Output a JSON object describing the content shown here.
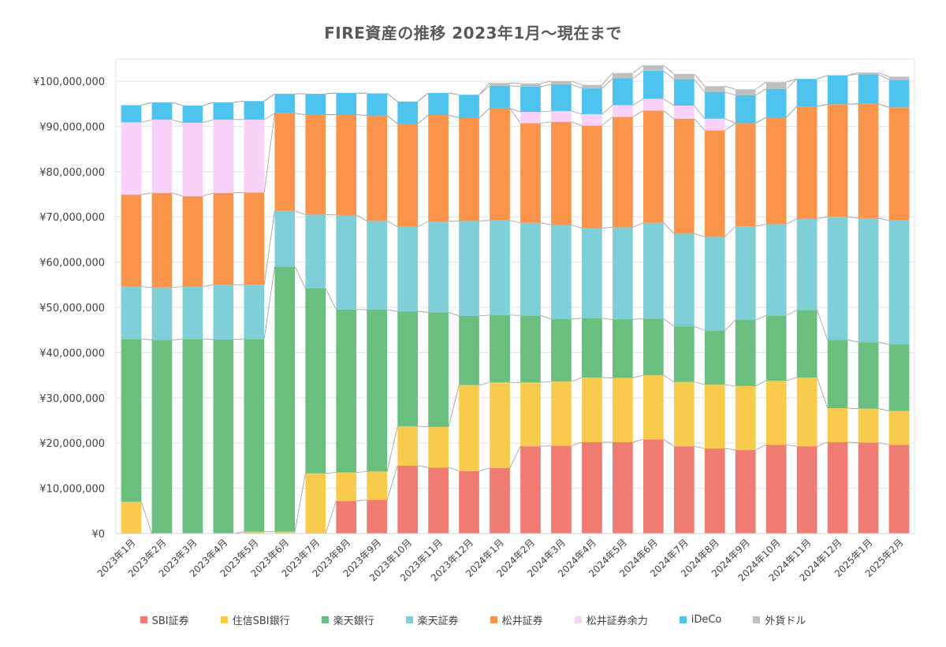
{
  "chart_data": {
    "type": "bar",
    "stacked": true,
    "title": "FIRE資産の推移 2023年1月～現在まで",
    "xlabel": "",
    "ylabel": "",
    "ylim": [
      0,
      100000000
    ],
    "yticks": [
      "¥0",
      "¥10,000,000",
      "¥20,000,000",
      "¥30,000,000",
      "¥40,000,000",
      "¥50,000,000",
      "¥60,000,000",
      "¥70,000,000",
      "¥80,000,000",
      "¥90,000,000",
      "¥100,000,000"
    ],
    "grid": true,
    "legend_position": "bottom",
    "connector_lines": true,
    "categories": [
      "2023年1月",
      "2023年2月",
      "2023年3月",
      "2023年4月",
      "2023年5月",
      "2023年6月",
      "2023年7月",
      "2023年8月",
      "2023年9月",
      "2023年10月",
      "2023年11月",
      "2023年12月",
      "2024年1月",
      "2024年2月",
      "2024年3月",
      "2024年4月",
      "2024年5月",
      "2024年6月",
      "2024年7月",
      "2024年8月",
      "2024年9月",
      "2024年10月",
      "2024年11月",
      "2024年12月",
      "2025年1月",
      "2025年2月"
    ],
    "series": [
      {
        "name": "SBI証券",
        "color": "#F07B72",
        "values": [
          0,
          0,
          0,
          0,
          0,
          0,
          0,
          7200000,
          7400000,
          15000000,
          14600000,
          13800000,
          14500000,
          19300000,
          19400000,
          20200000,
          20200000,
          20800000,
          19300000,
          18800000,
          18500000,
          19600000,
          19300000,
          20200000,
          20100000,
          19600000
        ]
      },
      {
        "name": "住信SBI銀行",
        "color": "#F9CB4D",
        "values": [
          7000000,
          0,
          0,
          0,
          400000,
          400000,
          13300000,
          6300000,
          6300000,
          8700000,
          9000000,
          19000000,
          18900000,
          14100000,
          14200000,
          14300000,
          14200000,
          14200000,
          14200000,
          14100000,
          14100000,
          14200000,
          15200000,
          7500000,
          7500000,
          7500000
        ]
      },
      {
        "name": "楽天銀行",
        "color": "#6BBF7E",
        "values": [
          36000000,
          42800000,
          43000000,
          42900000,
          42600000,
          58600000,
          40900000,
          36000000,
          35800000,
          25400000,
          25300000,
          15300000,
          14900000,
          14800000,
          13800000,
          13100000,
          12900000,
          12500000,
          12300000,
          12000000,
          14600000,
          14400000,
          14900000,
          15100000,
          14700000,
          14700000
        ]
      },
      {
        "name": "楽天証券",
        "color": "#7ECFD7",
        "values": [
          11600000,
          11600000,
          11600000,
          12100000,
          12000000,
          12300000,
          16300000,
          20900000,
          19600000,
          18700000,
          20100000,
          21000000,
          20900000,
          20500000,
          20800000,
          19900000,
          20400000,
          21200000,
          20500000,
          20700000,
          20700000,
          20200000,
          20200000,
          27200000,
          27400000,
          27400000
        ]
      },
      {
        "name": "松井証券",
        "color": "#F9944A",
        "values": [
          20300000,
          20900000,
          20000000,
          20300000,
          20400000,
          21600000,
          22100000,
          22200000,
          23300000,
          22800000,
          23500000,
          22800000,
          24800000,
          22000000,
          22800000,
          22700000,
          24400000,
          24800000,
          25400000,
          23500000,
          22800000,
          23600000,
          24800000,
          24900000,
          25300000,
          25000000
        ]
      },
      {
        "name": "松井証券余力",
        "color": "#F9D1F9",
        "values": [
          16000000,
          16200000,
          16200000,
          16200000,
          16100000,
          0,
          0,
          0,
          0,
          0,
          0,
          0,
          0,
          2500000,
          2400000,
          2500000,
          2600000,
          2600000,
          2900000,
          2600000,
          0,
          0,
          0,
          0,
          0,
          0
        ]
      },
      {
        "name": "iDeCo",
        "color": "#4EC3EE",
        "values": [
          3800000,
          3800000,
          3800000,
          3800000,
          4100000,
          4300000,
          4600000,
          4800000,
          4900000,
          4900000,
          4900000,
          5100000,
          5000000,
          5600000,
          5900000,
          5700000,
          5900000,
          6200000,
          5800000,
          5900000,
          6200000,
          6300000,
          6100000,
          6400000,
          6500000,
          6100000
        ]
      },
      {
        "name": "外貨ドル",
        "color": "#BFBFBF",
        "values": [
          0,
          0,
          0,
          0,
          0,
          0,
          0,
          0,
          0,
          0,
          0,
          0,
          600000,
          700000,
          700000,
          800000,
          1200000,
          1200000,
          1200000,
          1300000,
          1300000,
          1500000,
          0,
          0,
          400000,
          700000
        ]
      }
    ]
  }
}
